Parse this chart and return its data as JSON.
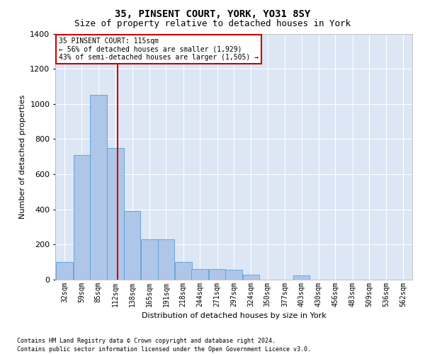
{
  "title": "35, PINSENT COURT, YORK, YO31 8SY",
  "subtitle": "Size of property relative to detached houses in York",
  "xlabel": "Distribution of detached houses by size in York",
  "ylabel": "Number of detached properties",
  "footnote1": "Contains HM Land Registry data © Crown copyright and database right 2024.",
  "footnote2": "Contains public sector information licensed under the Open Government Licence v3.0.",
  "property_label": "35 PINSENT COURT: 115sqm",
  "annotation_line1": "← 56% of detached houses are smaller (1,929)",
  "annotation_line2": "43% of semi-detached houses are larger (1,505) →",
  "property_size": 115,
  "bin_centers": [
    32,
    59,
    85,
    112,
    138,
    165,
    191,
    218,
    244,
    271,
    297,
    324,
    350,
    377,
    403,
    430,
    456,
    483,
    509,
    536,
    562
  ],
  "bin_labels": [
    "32sqm",
    "59sqm",
    "85sqm",
    "112sqm",
    "138sqm",
    "165sqm",
    "191sqm",
    "218sqm",
    "244sqm",
    "271sqm",
    "297sqm",
    "324sqm",
    "350sqm",
    "377sqm",
    "403sqm",
    "430sqm",
    "456sqm",
    "483sqm",
    "509sqm",
    "536sqm",
    "562sqm"
  ],
  "bar_heights": [
    100,
    710,
    1050,
    750,
    390,
    230,
    230,
    100,
    60,
    60,
    55,
    30,
    0,
    0,
    25,
    0,
    0,
    0,
    0,
    0,
    0
  ],
  "bar_color": "#aec6e8",
  "bar_edge_color": "#5a9fd4",
  "background_color": "#dce6f5",
  "grid_color": "#ffffff",
  "vline_color": "#cc0000",
  "ylim": [
    0,
    1400
  ],
  "yticks": [
    0,
    200,
    400,
    600,
    800,
    1000,
    1200,
    1400
  ],
  "annotation_box_facecolor": "#ffffff",
  "annotation_box_edgecolor": "#cc0000",
  "title_fontsize": 10,
  "subtitle_fontsize": 9,
  "ylabel_fontsize": 8,
  "xlabel_fontsize": 8,
  "tick_fontsize": 7,
  "footnote_fontsize": 6
}
